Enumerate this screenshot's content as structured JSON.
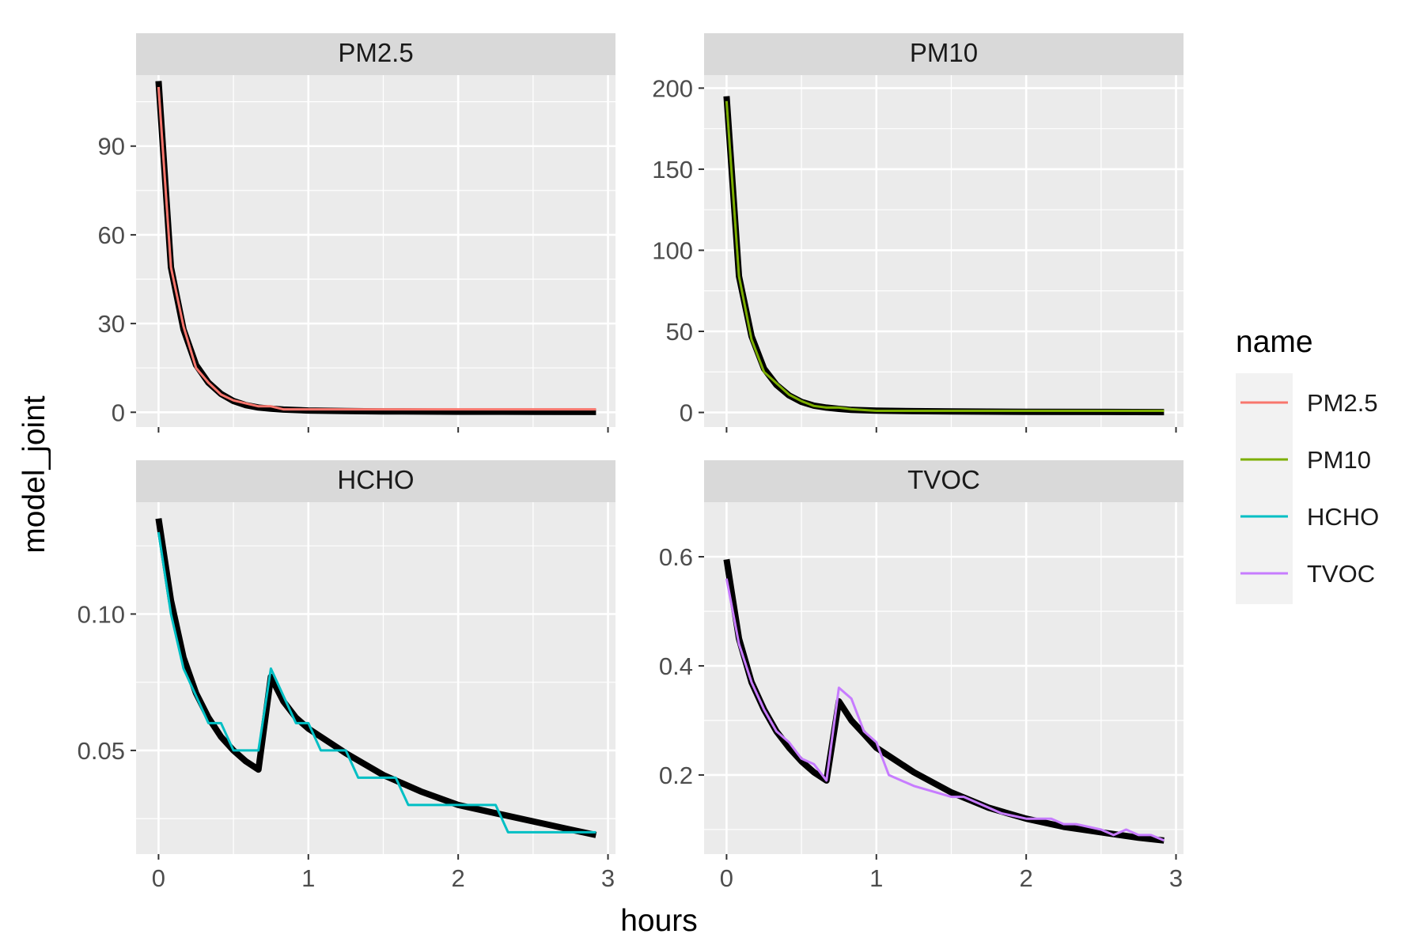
{
  "chart_data": {
    "type": "line",
    "xlabel": "hours",
    "ylabel": "model_joint",
    "legend": {
      "title": "name",
      "position": "right",
      "entries": [
        "PM2.5",
        "PM10",
        "HCHO",
        "TVOC"
      ]
    },
    "colors": {
      "PM2.5": "#F8766D",
      "PM10": "#7CAE00",
      "HCHO": "#00BFC4",
      "TVOC": "#C77CFF",
      "model": "#000000",
      "panel_bg": "#EBEBEB",
      "strip_bg": "#D9D9D9",
      "grid": "#FFFFFF"
    },
    "grid": true,
    "panels": [
      {
        "title": "PM2.5",
        "xlim": [
          -0.15,
          3.05
        ],
        "ylim": [
          -5,
          114
        ],
        "xticks": [
          0,
          1,
          2,
          3
        ],
        "xtick_labels": [
          "0",
          "1",
          "2",
          "3"
        ],
        "yticks": [
          0,
          30,
          60,
          90
        ],
        "ytick_labels": [
          "0",
          "30",
          "60",
          "90"
        ],
        "show_x_labels": false,
        "model": {
          "x": [
            0,
            0.083,
            0.167,
            0.25,
            0.333,
            0.417,
            0.5,
            0.583,
            0.667,
            0.75,
            0.833,
            1.0,
            1.25,
            1.5,
            2.0,
            2.5,
            2.92
          ],
          "y": [
            112,
            49,
            28,
            16,
            10,
            6.2,
            3.8,
            2.4,
            1.6,
            1.2,
            0.9,
            0.6,
            0.4,
            0.3,
            0.2,
            0.15,
            0.1
          ]
        },
        "series": {
          "name": "PM2.5",
          "x": [
            0,
            0.083,
            0.167,
            0.25,
            0.333,
            0.417,
            0.5,
            0.583,
            0.667,
            0.75,
            0.833,
            1.0,
            1.25,
            1.5,
            2.0,
            2.5,
            2.92
          ],
          "y": [
            110,
            49,
            29,
            15,
            10,
            6,
            4,
            3,
            2,
            2,
            1,
            1,
            1,
            1,
            1,
            1,
            1
          ]
        }
      },
      {
        "title": "PM10",
        "xlim": [
          -0.15,
          3.05
        ],
        "ylim": [
          -9,
          208
        ],
        "xticks": [
          0,
          1,
          2,
          3
        ],
        "xtick_labels": [
          "0",
          "1",
          "2",
          "3"
        ],
        "yticks": [
          0,
          50,
          100,
          150,
          200
        ],
        "ytick_labels": [
          "0",
          "50",
          "100",
          "150",
          "200"
        ],
        "show_x_labels": false,
        "model": {
          "x": [
            0,
            0.083,
            0.167,
            0.25,
            0.333,
            0.417,
            0.5,
            0.583,
            0.667,
            0.75,
            0.833,
            1.0,
            1.25,
            1.5,
            2.0,
            2.5,
            2.92
          ],
          "y": [
            195,
            84,
            47,
            27,
            17,
            10.5,
            6.5,
            4.2,
            3,
            2.2,
            1.6,
            1.1,
            0.8,
            0.6,
            0.4,
            0.3,
            0.2
          ]
        },
        "series": {
          "name": "PM10",
          "x": [
            0,
            0.083,
            0.167,
            0.25,
            0.333,
            0.417,
            0.5,
            0.583,
            0.667,
            0.75,
            0.833,
            1.0,
            1.25,
            1.5,
            2.0,
            2.5,
            2.92
          ],
          "y": [
            192,
            84,
            45,
            25,
            18,
            11,
            7,
            4,
            3,
            3,
            2,
            1,
            1,
            1,
            1,
            1,
            1
          ]
        }
      },
      {
        "title": "HCHO",
        "xlim": [
          -0.15,
          3.05
        ],
        "ylim": [
          0.012,
          0.141
        ],
        "xticks": [
          0,
          1,
          2,
          3
        ],
        "xtick_labels": [
          "0",
          "1",
          "2",
          "3"
        ],
        "yticks": [
          0.05,
          0.1
        ],
        "ytick_labels": [
          "0.05",
          "0.10"
        ],
        "show_x_labels": true,
        "model": {
          "x": [
            0,
            0.083,
            0.167,
            0.25,
            0.333,
            0.417,
            0.5,
            0.583,
            0.667,
            0.75,
            0.833,
            0.917,
            1.0,
            1.25,
            1.5,
            1.75,
            2.0,
            2.25,
            2.5,
            2.75,
            2.92
          ],
          "y": [
            0.135,
            0.105,
            0.084,
            0.071,
            0.062,
            0.055,
            0.05,
            0.046,
            0.043,
            0.077,
            0.068,
            0.062,
            0.058,
            0.049,
            0.041,
            0.035,
            0.03,
            0.027,
            0.024,
            0.021,
            0.019
          ]
        },
        "series": {
          "name": "HCHO",
          "x": [
            0,
            0.083,
            0.167,
            0.25,
            0.333,
            0.417,
            0.5,
            0.583,
            0.667,
            0.75,
            0.833,
            0.917,
            1.0,
            1.083,
            1.25,
            1.333,
            1.583,
            1.667,
            2.25,
            2.333,
            2.92
          ],
          "y": [
            0.13,
            0.1,
            0.08,
            0.07,
            0.06,
            0.06,
            0.05,
            0.05,
            0.05,
            0.08,
            0.07,
            0.06,
            0.06,
            0.05,
            0.05,
            0.04,
            0.04,
            0.03,
            0.03,
            0.02,
            0.02
          ]
        }
      },
      {
        "title": "TVOC",
        "xlim": [
          -0.15,
          3.05
        ],
        "ylim": [
          0.055,
          0.7
        ],
        "xticks": [
          0,
          1,
          2,
          3
        ],
        "xtick_labels": [
          "0",
          "1",
          "2",
          "3"
        ],
        "yticks": [
          0.2,
          0.4,
          0.6
        ],
        "ytick_labels": [
          "0.2",
          "0.4",
          "0.6"
        ],
        "show_x_labels": true,
        "model": {
          "x": [
            0,
            0.083,
            0.167,
            0.25,
            0.333,
            0.417,
            0.5,
            0.583,
            0.667,
            0.75,
            0.833,
            0.917,
            1.0,
            1.25,
            1.5,
            1.75,
            2.0,
            2.25,
            2.5,
            2.75,
            2.92
          ],
          "y": [
            0.595,
            0.45,
            0.37,
            0.32,
            0.28,
            0.25,
            0.225,
            0.205,
            0.19,
            0.335,
            0.3,
            0.275,
            0.25,
            0.205,
            0.168,
            0.14,
            0.12,
            0.105,
            0.095,
            0.085,
            0.08
          ]
        },
        "series": {
          "name": "TVOC",
          "x": [
            0,
            0.083,
            0.167,
            0.25,
            0.333,
            0.417,
            0.5,
            0.583,
            0.667,
            0.75,
            0.833,
            0.917,
            1.0,
            1.083,
            1.25,
            1.5,
            1.583,
            1.75,
            1.833,
            2.0,
            2.167,
            2.25,
            2.333,
            2.5,
            2.583,
            2.667,
            2.75,
            2.833,
            2.92
          ],
          "y": [
            0.56,
            0.44,
            0.37,
            0.32,
            0.28,
            0.26,
            0.23,
            0.22,
            0.19,
            0.36,
            0.34,
            0.28,
            0.26,
            0.2,
            0.18,
            0.16,
            0.16,
            0.14,
            0.13,
            0.12,
            0.12,
            0.11,
            0.11,
            0.1,
            0.09,
            0.1,
            0.09,
            0.09,
            0.08
          ]
        }
      }
    ]
  }
}
